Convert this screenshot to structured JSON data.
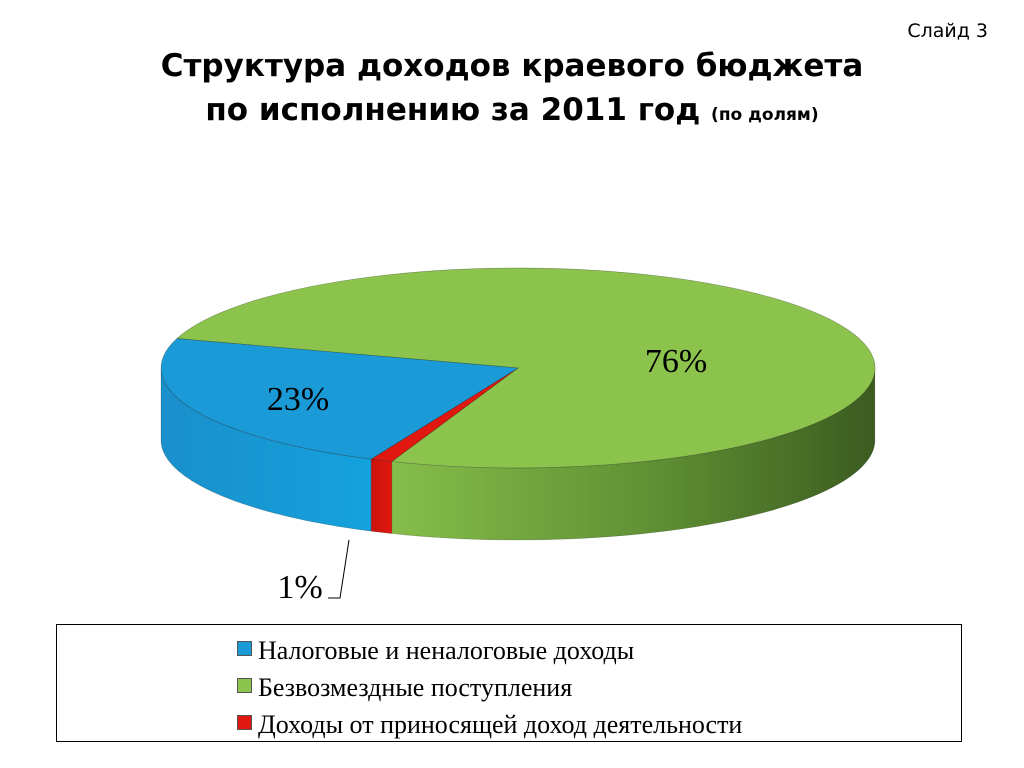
{
  "slide": {
    "number_label": "Слайд 3"
  },
  "header": {
    "title_line1": "Структура доходов краевого бюджета",
    "title_line2": "по исполнению за 2011 год",
    "title_note": "(по долям)"
  },
  "chart_data": {
    "type": "pie",
    "style": "3d",
    "title": "Структура доходов краевого бюджета по исполнению за 2011 год (по долям)",
    "legend_position": "bottom",
    "slices": [
      {
        "name": "Налоговые и неналоговые доходы",
        "value": 23,
        "label": "23%",
        "color": "#1a9ad6",
        "side_color": "#1283bd"
      },
      {
        "name": "Безвозмездные поступления",
        "value": 76,
        "label": "76%",
        "color": "#8cc34d",
        "side_color": "#6aa23c"
      },
      {
        "name": "Доходы от приносящей доход деятельности",
        "value": 1,
        "label": "1%",
        "color": "#e0180f",
        "side_color": "#b00d06"
      }
    ]
  }
}
